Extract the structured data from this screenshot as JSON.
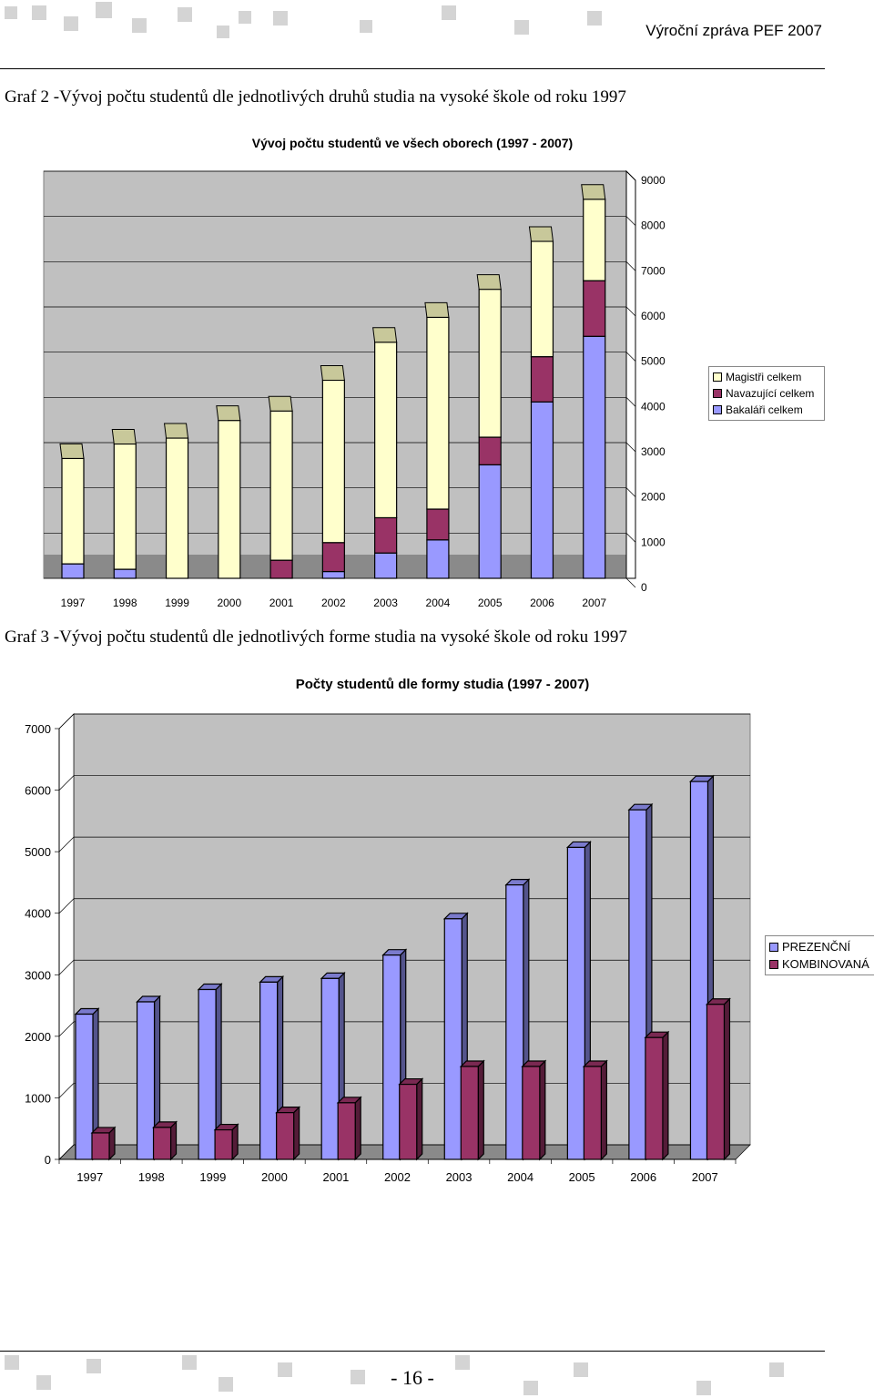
{
  "header": {
    "report_title": "Výroční zpráva PEF 2007"
  },
  "captions": {
    "graf2": "Graf 2 -Vývoj počtu studentů dle jednotlivých druhů studia na vysoké škole od roku 1997",
    "graf3": "Graf 3 -Vývoj počtu studentů dle jednotlivých forme studia na vysoké škole od roku 1997"
  },
  "footer": {
    "page_number": "- 16 -"
  },
  "colors": {
    "bakalari": "#9999ff",
    "navazujici": "#993366",
    "magistri": "#ffffcc",
    "prezencni": "#9999ff",
    "kombinovana": "#993366",
    "plot_wall": "#c0c0c0",
    "plot_floor": "#8a8a8a",
    "deco_square": "#d4d4d4"
  },
  "chart_data": [
    {
      "type": "bar",
      "stacked": true,
      "three_d": true,
      "title": "Vývoj počtu studentů ve všech oborech (1997 - 2007)",
      "categories": [
        "1997",
        "1998",
        "1999",
        "2000",
        "2001",
        "2002",
        "2003",
        "2004",
        "2005",
        "2006",
        "2007"
      ],
      "series": [
        {
          "name": "Bakaláři celkem",
          "values": [
            320,
            200,
            0,
            0,
            0,
            150,
            560,
            850,
            2510,
            3900,
            5350
          ]
        },
        {
          "name": "Navazující celkem",
          "values": [
            0,
            0,
            0,
            0,
            400,
            640,
            780,
            680,
            610,
            1000,
            1230
          ]
        },
        {
          "name": "Magistři celkem",
          "values": [
            2330,
            2770,
            3100,
            3490,
            3300,
            3590,
            3880,
            4240,
            3270,
            2550,
            1800
          ]
        }
      ],
      "ylim": [
        0,
        9000
      ],
      "yticks": [
        "0",
        "1000",
        "2000",
        "3000",
        "4000",
        "5000",
        "6000",
        "7000",
        "8000",
        "9000"
      ],
      "axis_side": "right",
      "grid": true,
      "legend_position": "right"
    },
    {
      "type": "bar",
      "stacked": false,
      "three_d": true,
      "title": "Počty studentů dle formy studia (1997 - 2007)",
      "categories": [
        "1997",
        "1998",
        "1999",
        "2000",
        "2001",
        "2002",
        "2003",
        "2004",
        "2005",
        "2006",
        "2007"
      ],
      "series": [
        {
          "name": "PREZENČNÍ",
          "values": [
            2360,
            2560,
            2760,
            2880,
            2940,
            3320,
            3910,
            4460,
            5070,
            5680,
            6140
          ]
        },
        {
          "name": "KOMBINOVANÁ",
          "values": [
            430,
            520,
            480,
            760,
            920,
            1220,
            1510,
            1510,
            1510,
            1980,
            2520
          ]
        }
      ],
      "ylim": [
        0,
        7000
      ],
      "yticks": [
        "0",
        "1000",
        "2000",
        "3000",
        "4000",
        "5000",
        "6000",
        "7000"
      ],
      "axis_side": "left",
      "grid": true,
      "legend_position": "right"
    }
  ]
}
